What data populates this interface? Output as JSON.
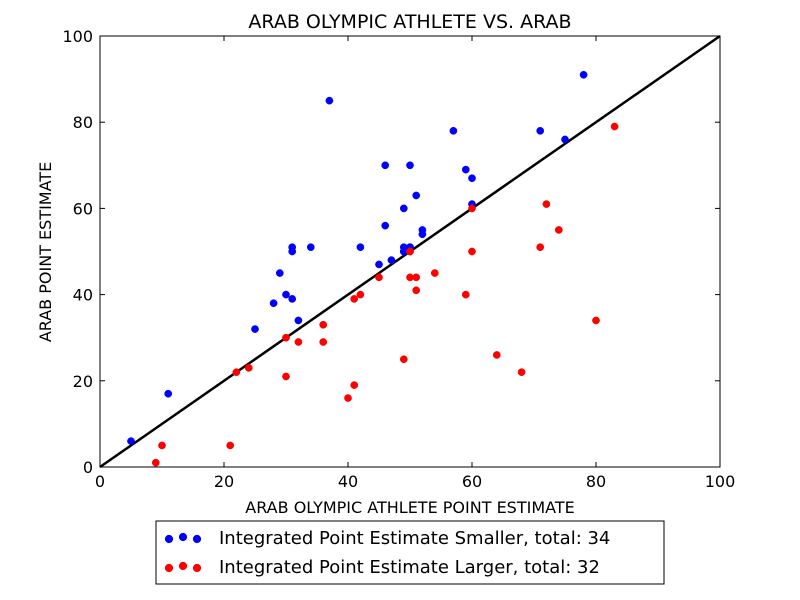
{
  "chart_data": {
    "type": "scatter",
    "title": "ARAB OLYMPIC ATHLETE VS. ARAB",
    "xlabel": "ARAB OLYMPIC ATHLETE POINT ESTIMATE",
    "ylabel": "ARAB POINT ESTIMATE",
    "xlim": [
      0,
      100
    ],
    "ylim": [
      0,
      100
    ],
    "xticks": [
      "0",
      "20",
      "40",
      "60",
      "80",
      "100"
    ],
    "yticks": [
      "0",
      "20",
      "40",
      "60",
      "80",
      "100"
    ],
    "grid": false,
    "legend_position": "bottom-center, below plot",
    "reference_line": {
      "x": [
        0,
        100
      ],
      "y": [
        0,
        100
      ],
      "color": "#000000"
    },
    "series": [
      {
        "name": "Integrated Point Estimate Smaller, total: 34",
        "color": "#0000ff",
        "points": [
          [
            5,
            6
          ],
          [
            11,
            17
          ],
          [
            25,
            32
          ],
          [
            28,
            38
          ],
          [
            29,
            45
          ],
          [
            30,
            40
          ],
          [
            31,
            39
          ],
          [
            31,
            50
          ],
          [
            31,
            51
          ],
          [
            32,
            34
          ],
          [
            34,
            51
          ],
          [
            37,
            85
          ],
          [
            42,
            51
          ],
          [
            45,
            47
          ],
          [
            46,
            56
          ],
          [
            46,
            70
          ],
          [
            47,
            48
          ],
          [
            49,
            51
          ],
          [
            49,
            50
          ],
          [
            49,
            60
          ],
          [
            50,
            51
          ],
          [
            50,
            70
          ],
          [
            51,
            63
          ],
          [
            52,
            54
          ],
          [
            52,
            55
          ],
          [
            57,
            78
          ],
          [
            59,
            69
          ],
          [
            60,
            67
          ],
          [
            60,
            61
          ],
          [
            71,
            78
          ],
          [
            75,
            76
          ],
          [
            78,
            91
          ],
          [
            49,
            50
          ],
          [
            50,
            51
          ]
        ]
      },
      {
        "name": "Integrated Point Estimate Larger, total: 32",
        "color": "#ff0000",
        "points": [
          [
            9,
            1
          ],
          [
            10,
            5
          ],
          [
            21,
            5
          ],
          [
            22,
            22
          ],
          [
            24,
            23
          ],
          [
            30,
            30
          ],
          [
            30,
            21
          ],
          [
            32,
            29
          ],
          [
            36,
            33
          ],
          [
            36,
            29
          ],
          [
            40,
            16
          ],
          [
            41,
            19
          ],
          [
            41,
            39
          ],
          [
            42,
            40
          ],
          [
            45,
            44
          ],
          [
            49,
            25
          ],
          [
            50,
            50
          ],
          [
            50,
            44
          ],
          [
            51,
            44
          ],
          [
            51,
            41
          ],
          [
            54,
            45
          ],
          [
            59,
            40
          ],
          [
            60,
            60
          ],
          [
            60,
            50
          ],
          [
            64,
            26
          ],
          [
            68,
            22
          ],
          [
            71,
            51
          ],
          [
            72,
            61
          ],
          [
            74,
            55
          ],
          [
            80,
            34
          ],
          [
            83,
            79
          ],
          [
            50,
            50
          ]
        ]
      }
    ]
  }
}
